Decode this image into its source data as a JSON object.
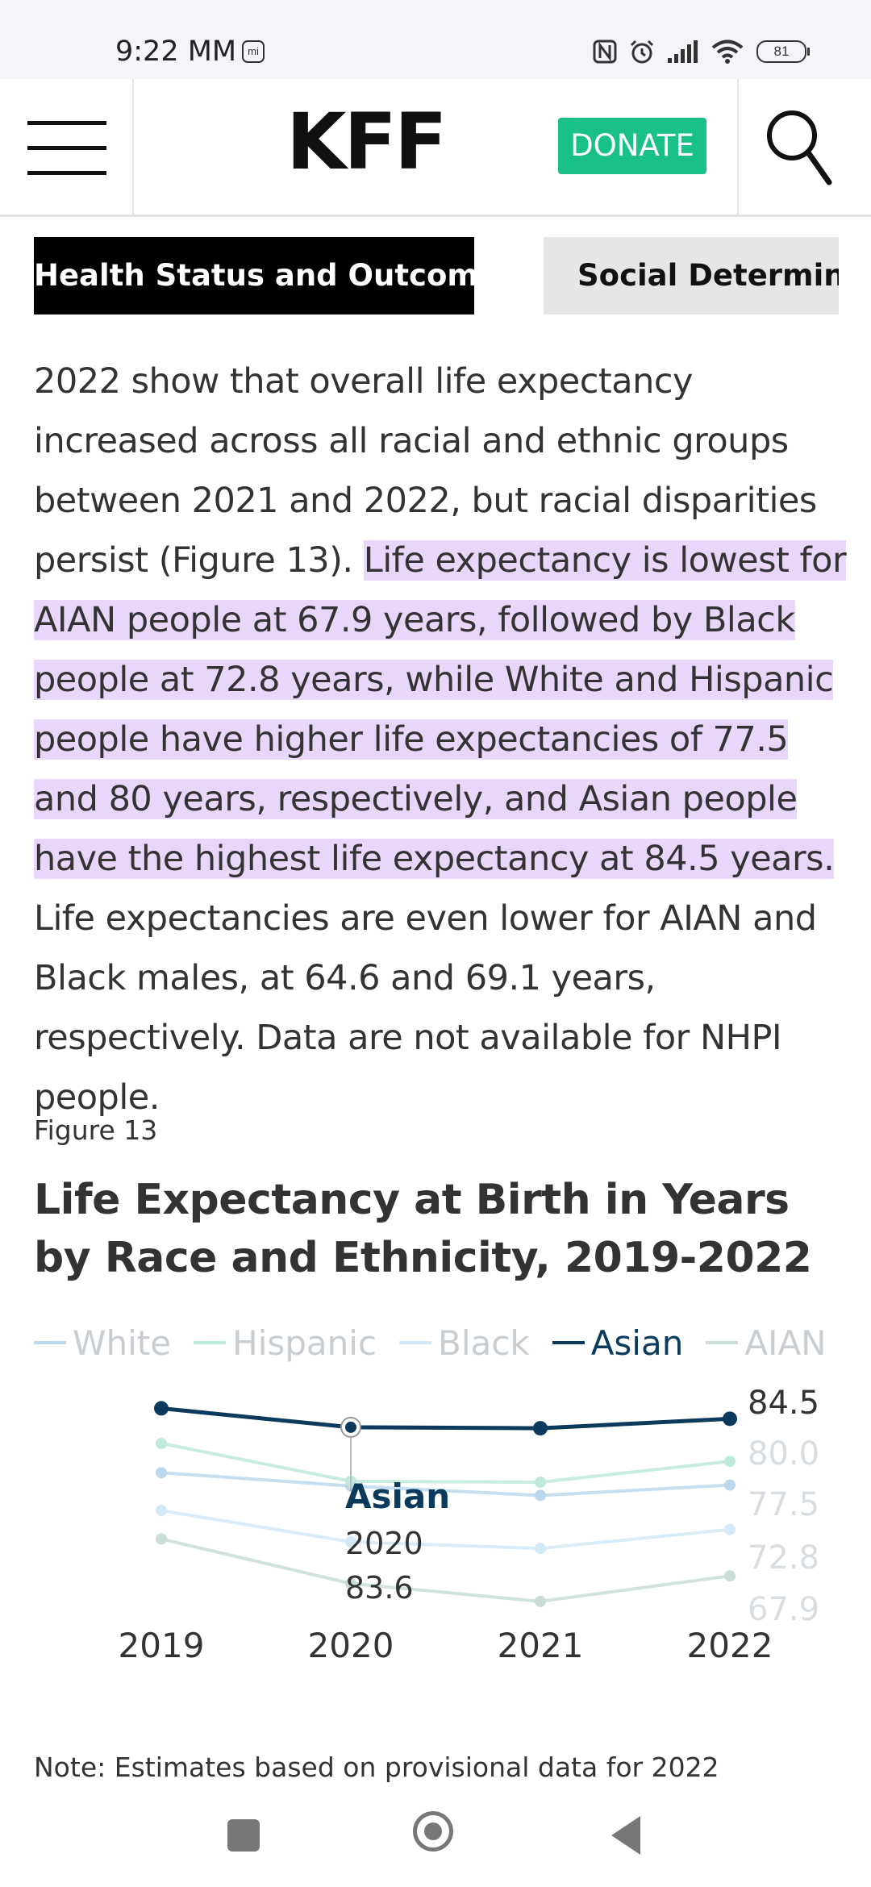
{
  "status_bar": {
    "time": "9:22 MM",
    "mi_badge": "mi",
    "battery": "81"
  },
  "header": {
    "logo": "KFF",
    "donate_label": "DONATE"
  },
  "tabs": [
    {
      "label": "Health Status and Outcomes",
      "active": true
    },
    {
      "label": "Social Determinants",
      "active": false
    }
  ],
  "article": {
    "before": "2022 show that overall life expectancy increased across all racial and ethnic groups between 2021 and 2022, but racial disparities persist (Figure 13). ",
    "highlight": "Life expectancy is lowest for AIAN people at 67.9 years, followed by Black people at 72.8 years, while White and Hispanic people have higher life expectancies of 77.5 and 80 years, respectively, and Asian people have the highest life expectancy at 84.5 years.",
    "after": " Life expectancies are even lower for AIAN and Black males, at 64.6 and 69.1 years, respectively. Data are not available for NHPI people."
  },
  "figure": {
    "label": "Figure 13",
    "title": "Life Expectancy at Birth in Years by Race and Ethnicity, 2019-2022",
    "note": "Note: Estimates based on provisional data for 2022"
  },
  "chart_data": {
    "type": "line",
    "x": [
      "2019",
      "2020",
      "2021",
      "2022"
    ],
    "series": [
      {
        "name": "White",
        "values": [
          78.8,
          77.4,
          76.4,
          77.5
        ],
        "color": "#bcd8ec",
        "highlighted": false
      },
      {
        "name": "Hispanic",
        "values": [
          81.9,
          77.9,
          77.8,
          80.0
        ],
        "color": "#bfe9dc",
        "highlighted": false
      },
      {
        "name": "Black",
        "values": [
          74.8,
          71.5,
          70.8,
          72.8
        ],
        "color": "#d4e9f7",
        "highlighted": false
      },
      {
        "name": "Asian",
        "values": [
          85.6,
          83.6,
          83.5,
          84.5
        ],
        "color": "#0b3a5c",
        "highlighted": true
      },
      {
        "name": "AIAN",
        "values": [
          71.8,
          67.1,
          65.2,
          67.9
        ],
        "color": "#c9ddd6",
        "highlighted": false
      }
    ],
    "end_labels": [
      "84.5",
      "80.0",
      "77.5",
      "72.8",
      "67.9"
    ],
    "ylim": [
      64,
      87
    ],
    "legend_position": "top",
    "tooltip": {
      "series": "Asian",
      "x": "2020",
      "value": "83.6"
    }
  },
  "icons": {
    "menu": "menu-icon",
    "search": "search-icon"
  }
}
